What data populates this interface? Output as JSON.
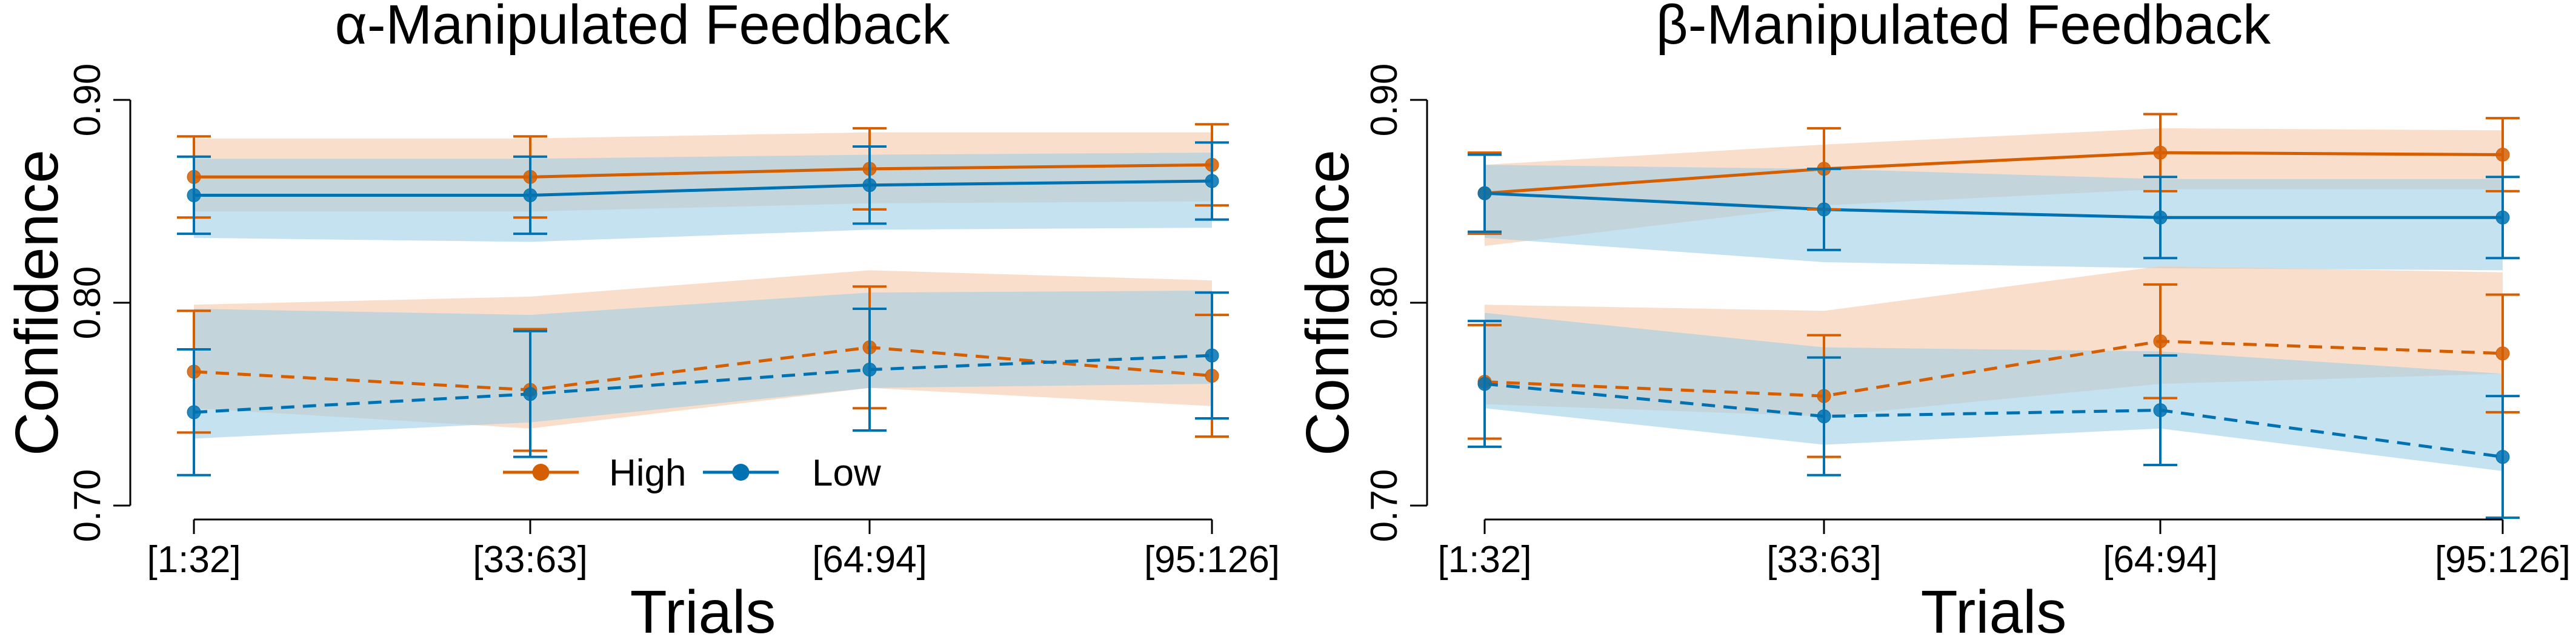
{
  "colors": {
    "high": "#D55E00",
    "low": "#0072B2",
    "high_ribbon": "#F5C8A8",
    "low_ribbon": "#9ECFE6"
  },
  "legend": {
    "placement": "bottom-center of left panel",
    "entries": [
      {
        "label": "High",
        "color": "#D55E00",
        "marker": "filled-circle"
      },
      {
        "label": "Low",
        "color": "#0072B2",
        "marker": "filled-circle"
      }
    ]
  },
  "chart_data": [
    {
      "type": "line",
      "title": "α-Manipulated Feedback",
      "xlabel": "Trials",
      "ylabel": "Confidence",
      "categories": [
        "[1:32]",
        "[33:63]",
        "[64:94]",
        "[95:126]"
      ],
      "ylim": [
        0.7,
        0.9
      ],
      "yticks": [
        "0.70",
        "0.80",
        "0.90"
      ],
      "grid": false,
      "series": [
        {
          "name": "High",
          "color": "#D55E00",
          "dash": "solid",
          "values": [
            0.862,
            0.862,
            0.866,
            0.868
          ],
          "err": [
            0.02,
            0.02,
            0.02,
            0.02
          ],
          "band": [
            [
              0.845,
              0.881
            ],
            [
              0.845,
              0.881
            ],
            [
              0.849,
              0.884
            ],
            [
              0.85,
              0.884
            ]
          ]
        },
        {
          "name": "Low",
          "color": "#0072B2",
          "dash": "solid",
          "values": [
            0.853,
            0.853,
            0.858,
            0.86
          ],
          "err": [
            0.019,
            0.019,
            0.019,
            0.019
          ],
          "band": [
            [
              0.832,
              0.871
            ],
            [
              0.83,
              0.871
            ],
            [
              0.836,
              0.873
            ],
            [
              0.837,
              0.874
            ]
          ]
        },
        {
          "name": "High",
          "color": "#D55E00",
          "dash": "dashed",
          "values": [
            0.766,
            0.757,
            0.778,
            0.764
          ],
          "err": [
            0.03,
            0.03,
            0.03,
            0.03
          ],
          "band": [
            [
              0.748,
              0.799
            ],
            [
              0.738,
              0.803
            ],
            [
              0.758,
              0.816
            ],
            [
              0.749,
              0.811
            ]
          ]
        },
        {
          "name": "Low",
          "color": "#0072B2",
          "dash": "dashed",
          "values": [
            0.746,
            0.755,
            0.767,
            0.774
          ],
          "err": [
            0.031,
            0.031,
            0.03,
            0.031
          ],
          "band": [
            [
              0.733,
              0.797
            ],
            [
              0.741,
              0.794
            ],
            [
              0.758,
              0.805
            ],
            [
              0.76,
              0.806
            ]
          ]
        }
      ]
    },
    {
      "type": "line",
      "title": "β-Manipulated Feedback",
      "xlabel": "Trials",
      "ylabel": "Confidence",
      "categories": [
        "[1:32]",
        "[33:63]",
        "[64:94]",
        "[95:126]"
      ],
      "ylim": [
        0.7,
        0.9
      ],
      "yticks": [
        "0.70",
        "0.80",
        "0.90"
      ],
      "grid": false,
      "series": [
        {
          "name": "High",
          "color": "#D55E00",
          "dash": "solid",
          "values": [
            0.854,
            0.866,
            0.874,
            0.873
          ],
          "err": [
            0.02,
            0.02,
            0.019,
            0.018
          ],
          "band": [
            [
              0.828,
              0.868
            ],
            [
              0.848,
              0.878
            ],
            [
              0.856,
              0.886
            ],
            [
              0.856,
              0.885
            ]
          ]
        },
        {
          "name": "Low",
          "color": "#0072B2",
          "dash": "solid",
          "values": [
            0.854,
            0.846,
            0.842,
            0.842
          ],
          "err": [
            0.019,
            0.02,
            0.02,
            0.02
          ],
          "band": [
            [
              0.832,
              0.868
            ],
            [
              0.82,
              0.866
            ],
            [
              0.817,
              0.861
            ],
            [
              0.816,
              0.861
            ]
          ]
        },
        {
          "name": "High",
          "color": "#D55E00",
          "dash": "dashed",
          "values": [
            0.761,
            0.754,
            0.781,
            0.775
          ],
          "err": [
            0.028,
            0.03,
            0.028,
            0.029
          ],
          "band": [
            [
              0.75,
              0.799
            ],
            [
              0.744,
              0.796
            ],
            [
              0.76,
              0.818
            ],
            [
              0.765,
              0.815
            ]
          ]
        },
        {
          "name": "Low",
          "color": "#0072B2",
          "dash": "dashed",
          "values": [
            0.76,
            0.744,
            0.747,
            0.724
          ],
          "err": [
            0.031,
            0.029,
            0.027,
            0.03
          ],
          "band": [
            [
              0.748,
              0.795
            ],
            [
              0.73,
              0.778
            ],
            [
              0.738,
              0.776
            ],
            [
              0.717,
              0.765
            ]
          ]
        }
      ]
    }
  ]
}
